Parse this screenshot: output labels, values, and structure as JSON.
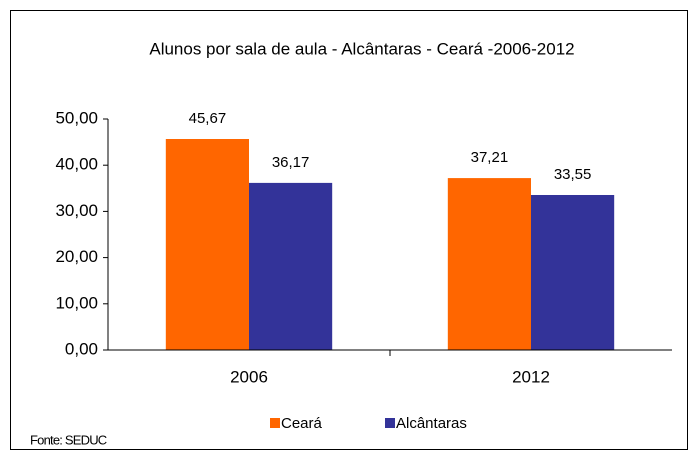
{
  "chart_data": {
    "type": "bar",
    "title": "Alunos por sala de aula -  Alcântaras - Ceará -2006-2012",
    "categories": [
      "2006",
      "2012"
    ],
    "series": [
      {
        "name": "Ceará",
        "color": "#ff6600",
        "values": [
          45.67,
          37.21
        ],
        "value_labels": [
          "45,67",
          "37,21"
        ]
      },
      {
        "name": "Alcântaras",
        "color": "#333399",
        "values": [
          36.17,
          33.55
        ],
        "value_labels": [
          "36,17",
          "33,55"
        ]
      }
    ],
    "ylim": [
      0,
      50
    ],
    "yticks": [
      {
        "value": 0,
        "label": "0,00"
      },
      {
        "value": 10,
        "label": "10,00"
      },
      {
        "value": 20,
        "label": "20,00"
      },
      {
        "value": 30,
        "label": "30,00"
      },
      {
        "value": 40,
        "label": "40,00"
      },
      {
        "value": 50,
        "label": "50,00"
      }
    ],
    "legend": "bottom",
    "source": "Fonte: SEDUC"
  }
}
